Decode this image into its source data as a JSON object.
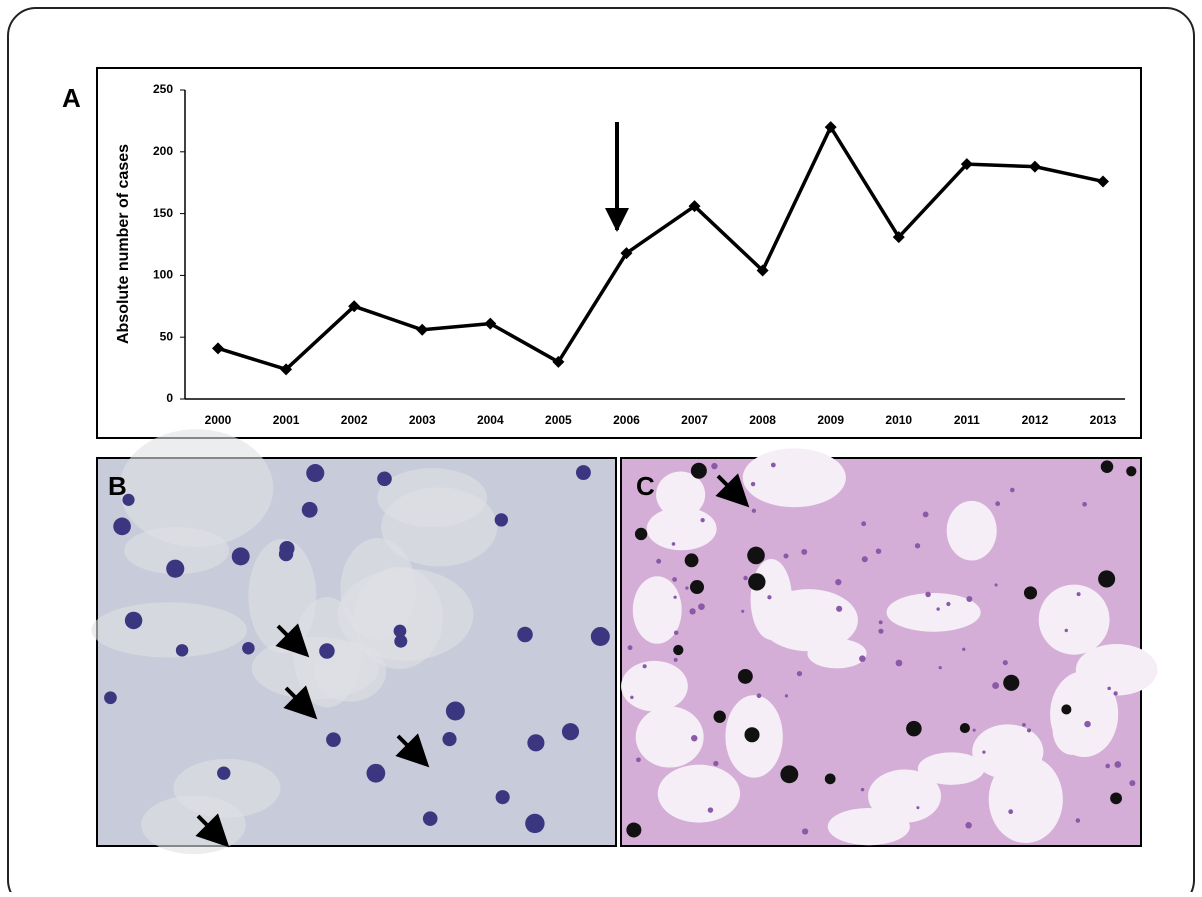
{
  "chart_data": {
    "type": "line",
    "y_label": "Absolute number of cases",
    "categories": [
      "2000",
      "2001",
      "2002",
      "2003",
      "2004",
      "2005",
      "2006",
      "2007",
      "2008",
      "2009",
      "2010",
      "2011",
      "2012",
      "2013"
    ],
    "values": [
      41,
      24,
      75,
      56,
      61,
      30,
      118,
      156,
      104,
      220,
      131,
      190,
      188,
      176
    ],
    "color": "#000000",
    "ylim": [
      0,
      250
    ],
    "yticks": [
      0,
      50,
      100,
      150,
      200,
      250
    ],
    "grid": false
  },
  "panels": {
    "a": "A",
    "b": "B",
    "c": "C"
  }
}
